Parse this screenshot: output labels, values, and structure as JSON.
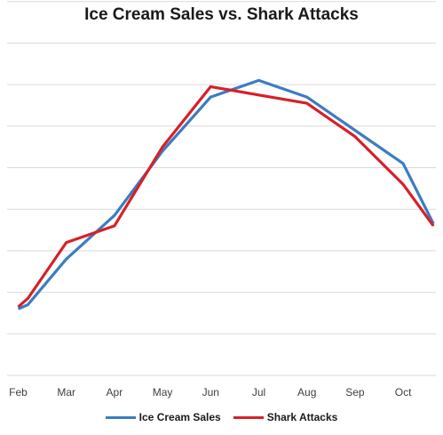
{
  "chart_data": {
    "type": "line",
    "title": "Ice Cream Sales vs. Shark Attacks",
    "xlabel": "",
    "ylabel": "",
    "categories": [
      "Feb",
      "Mar",
      "Apr",
      "May",
      "Jun",
      "Jul",
      "Aug",
      "Sep",
      "Oct"
    ],
    "y_axis_labels_visible": false,
    "ylim": [
      0,
      9
    ],
    "grid": true,
    "legend_position": "bottom",
    "series": [
      {
        "name": "Ice Cream Sales",
        "color": "#3a7dc1",
        "x": [
          0,
          0.2,
          1,
          2,
          3,
          4,
          5,
          6,
          7,
          8,
          8.63
        ],
        "values": [
          1.6,
          1.7,
          2.8,
          3.85,
          5.4,
          6.7,
          7.1,
          6.7,
          5.9,
          5.1,
          3.65
        ]
      },
      {
        "name": "Shark Attacks",
        "color": "#d72028",
        "x": [
          0,
          0.2,
          1,
          2,
          3,
          4,
          5,
          6,
          7,
          8,
          8.63
        ],
        "values": [
          1.65,
          1.85,
          3.2,
          3.6,
          5.5,
          6.95,
          6.75,
          6.55,
          5.75,
          4.6,
          3.6
        ]
      }
    ]
  }
}
